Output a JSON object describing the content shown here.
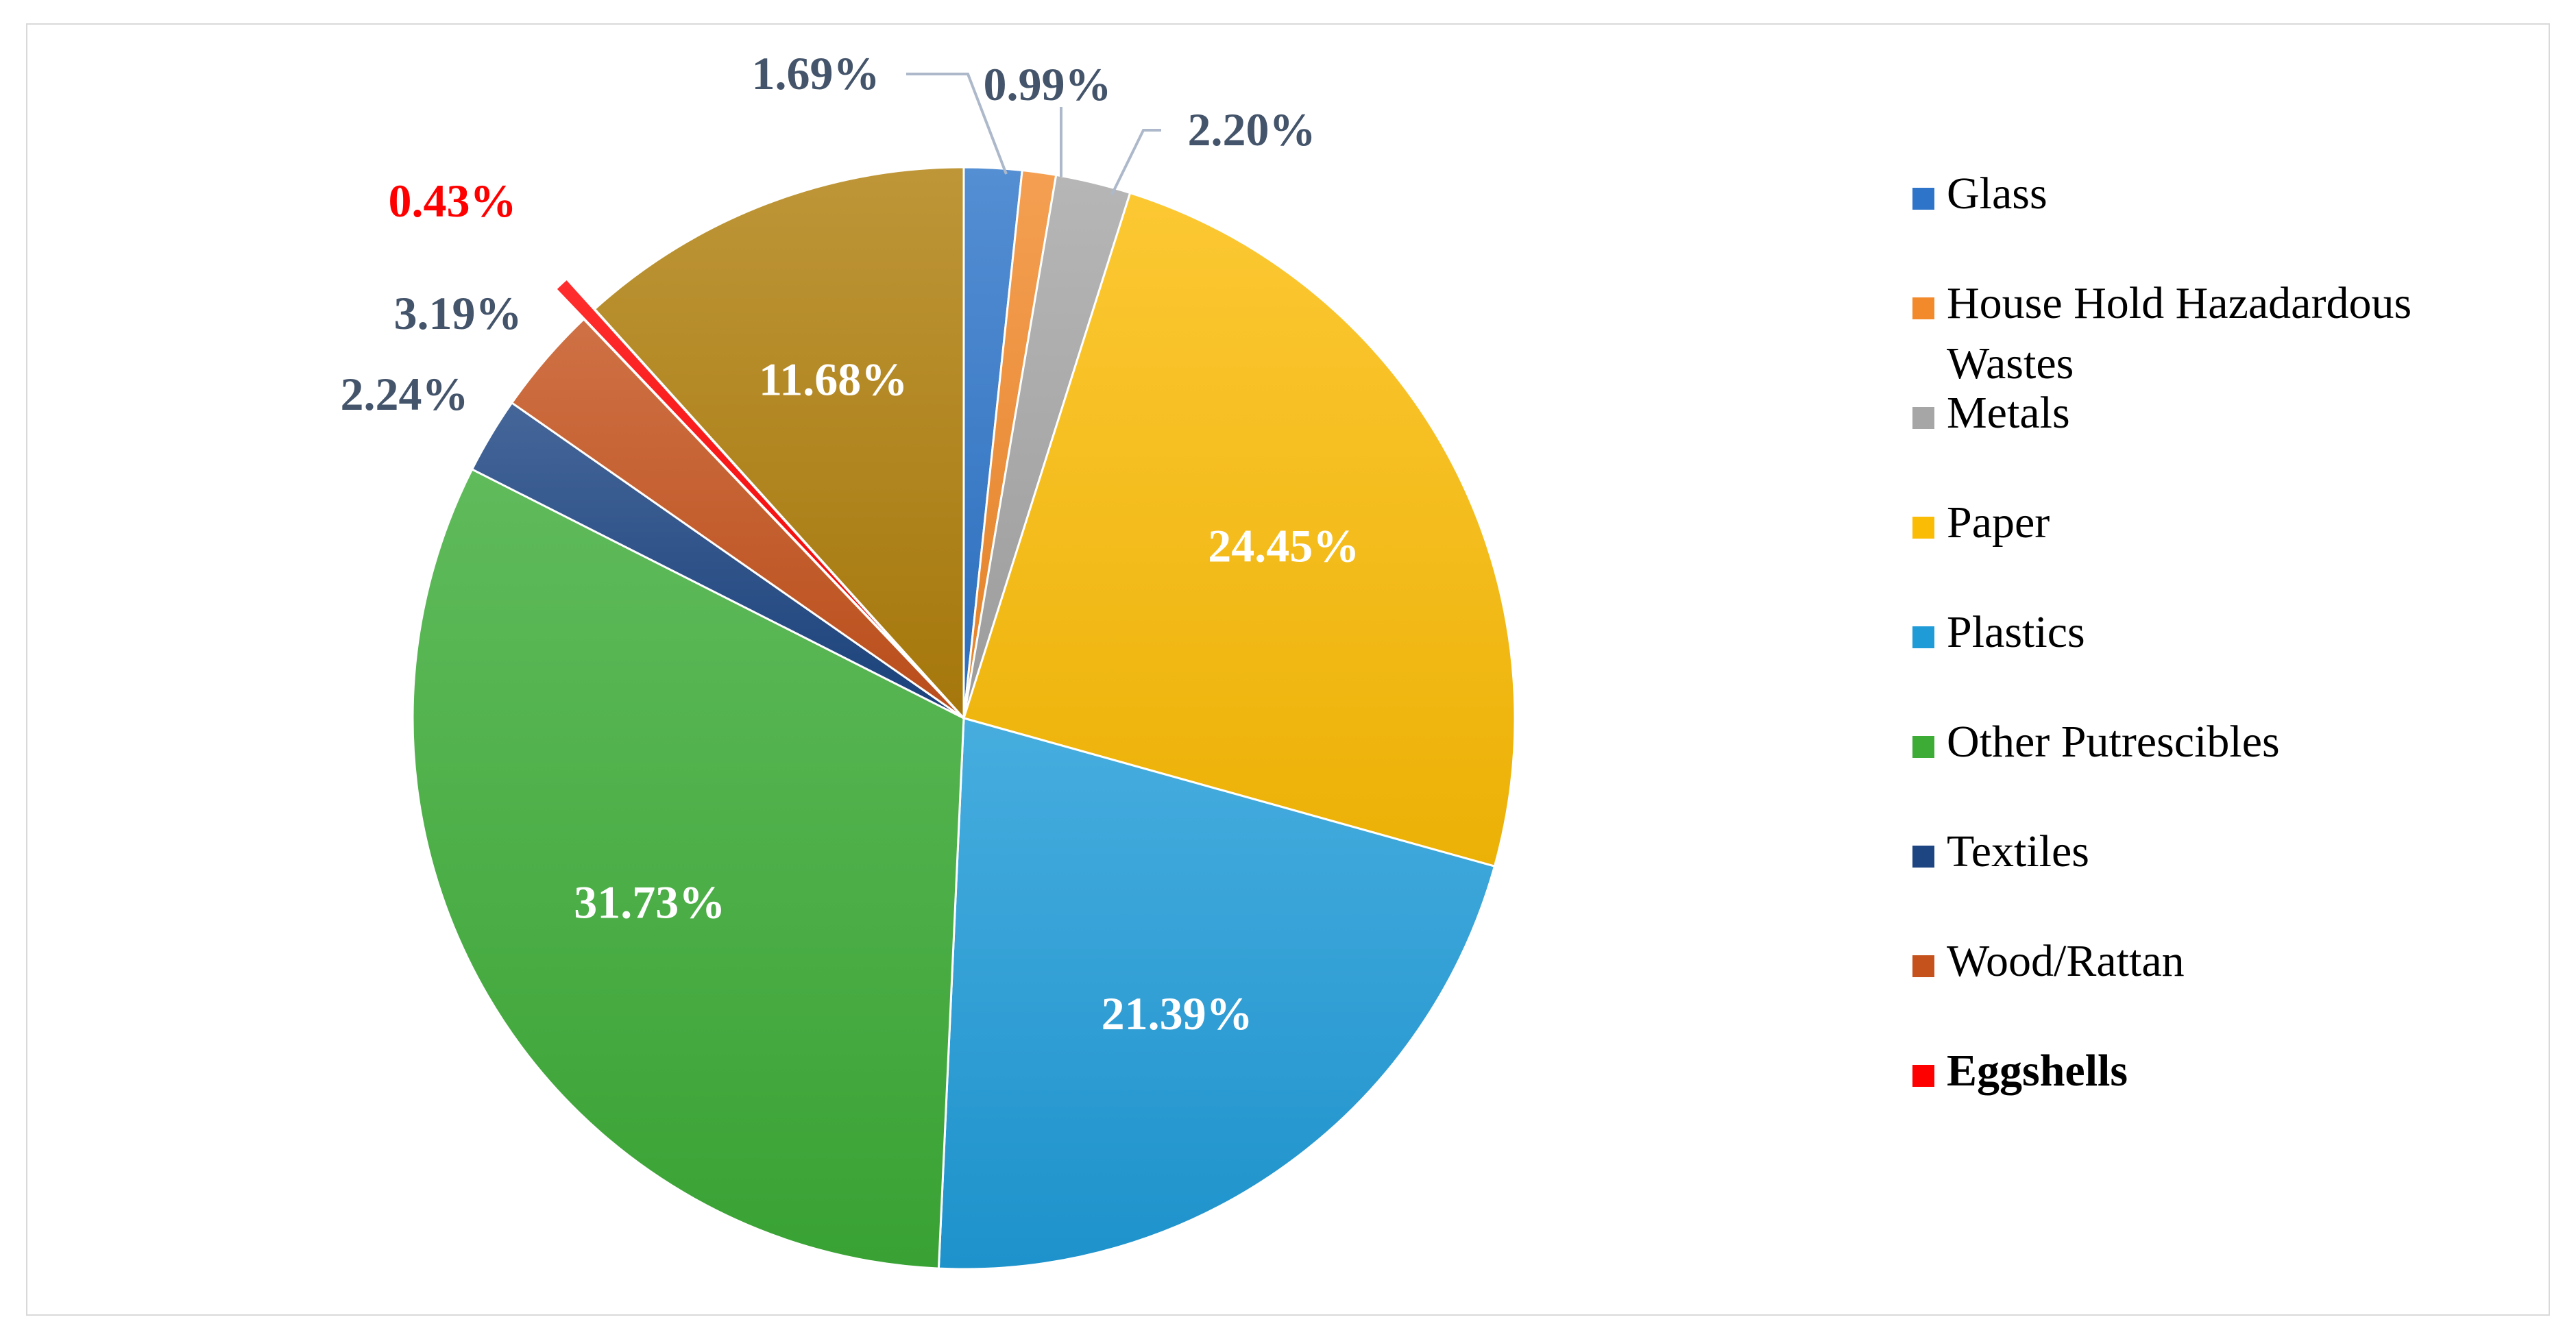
{
  "chart_data": {
    "type": "pie",
    "title": "",
    "start_angle_deg": 0,
    "direction": "clockwise",
    "legend_position": "right",
    "slices": [
      {
        "name": "Glass",
        "value": 1.69,
        "label": "1.69%",
        "color": "#2e75c9",
        "label_color": "#44546a",
        "label_placement": "outside"
      },
      {
        "name": "House Hold Hazadardous Wastes",
        "value": 0.99,
        "label": "0.99%",
        "color": "#f28a2c",
        "label_color": "#44546a",
        "label_placement": "outside"
      },
      {
        "name": "Metals",
        "value": 2.2,
        "label": "2.20%",
        "color": "#a6a6a6",
        "label_color": "#44546a",
        "label_placement": "outside"
      },
      {
        "name": "Paper",
        "value": 24.45,
        "label": "24.45%",
        "color": "#fbbc06",
        "label_color": "#ffffff",
        "label_placement": "inside"
      },
      {
        "name": "Plastics",
        "value": 21.39,
        "label": "21.39%",
        "color": "#1f9bd8",
        "label_color": "#ffffff",
        "label_placement": "inside"
      },
      {
        "name": "Other Putrescibles",
        "value": 31.73,
        "label": "31.73%",
        "color": "#3dac37",
        "label_color": "#ffffff",
        "label_placement": "inside"
      },
      {
        "name": "Textiles",
        "value": 2.24,
        "label": "2.24%",
        "color": "#1c4582",
        "label_color": "#44546a",
        "label_placement": "outside"
      },
      {
        "name": "Wood/Rattan",
        "value": 3.19,
        "label": "3.19%",
        "color": "#c5521c",
        "label_color": "#44546a",
        "label_placement": "outside"
      },
      {
        "name": "Eggshells",
        "value": 0.43,
        "label": "0.43%",
        "color": "#ff0000",
        "label_color": "#ff0000",
        "label_placement": "outside",
        "exploded": true,
        "emphasized": true
      },
      {
        "name": "",
        "value": 11.68,
        "label": "11.68%",
        "color": "#b07f0c",
        "label_color": "#ffffff",
        "label_placement": "inside"
      }
    ],
    "legend": [
      {
        "name": "Glass",
        "color": "#2e75c9"
      },
      {
        "name": "House Hold Hazadardous",
        "name_line2": "Wastes",
        "color": "#f28a2c"
      },
      {
        "name": "Metals",
        "color": "#a6a6a6"
      },
      {
        "name": "Paper",
        "color": "#fbbc06"
      },
      {
        "name": "Plastics",
        "color": "#1f9bd8"
      },
      {
        "name": "Other Putrescibles",
        "color": "#3dac37"
      },
      {
        "name": "Textiles",
        "color": "#1c4582"
      },
      {
        "name": "Wood/Rattan",
        "color": "#c5521c"
      },
      {
        "name": "Eggshells",
        "color": "#ff0000",
        "emphasized": true
      }
    ]
  }
}
